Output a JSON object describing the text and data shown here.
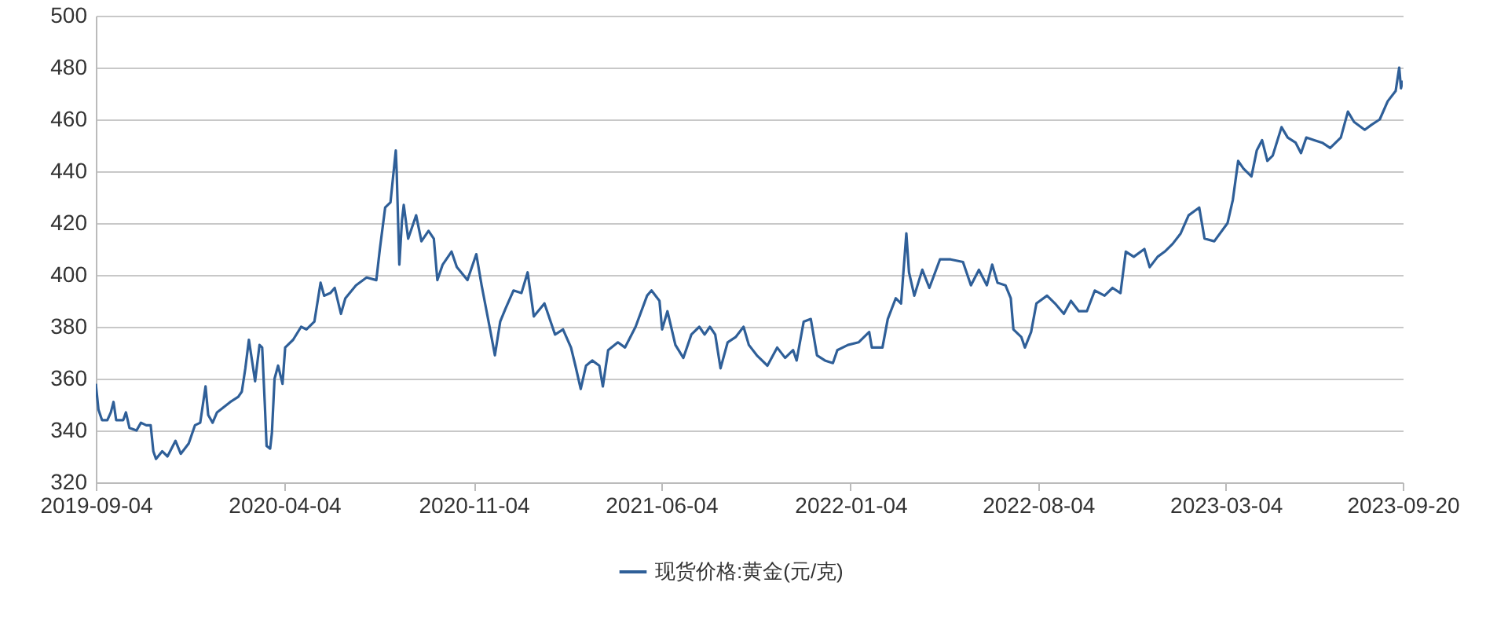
{
  "chart_data": {
    "type": "line",
    "grid": "y",
    "legend": "bottom",
    "xlim": [
      "2019-09-04",
      "2023-09-20"
    ],
    "xticks": [
      "2019-09-04",
      "2020-04-04",
      "2020-11-04",
      "2021-06-04",
      "2022-01-04",
      "2022-08-04",
      "2023-03-04",
      "2023-09-20"
    ],
    "ylim": [
      320,
      500
    ],
    "yticks": [
      320,
      340,
      360,
      380,
      400,
      420,
      440,
      460,
      480,
      500
    ],
    "x": [
      "2019-09-04",
      "2019-09-07",
      "2019-09-11",
      "2019-09-17",
      "2019-09-21",
      "2019-09-24",
      "2019-09-27",
      "2019-10-05",
      "2019-10-08",
      "2019-10-12",
      "2019-10-20",
      "2019-10-25",
      "2019-10-31",
      "2019-11-05",
      "2019-11-08",
      "2019-11-11",
      "2019-11-18",
      "2019-11-24",
      "2019-12-03",
      "2019-12-09",
      "2019-12-18",
      "2019-12-25",
      "2019-12-31",
      "2020-01-06",
      "2020-01-09",
      "2020-01-14",
      "2020-01-19",
      "2020-02-03",
      "2020-02-12",
      "2020-02-16",
      "2020-02-20",
      "2020-02-24",
      "2020-03-02",
      "2020-03-07",
      "2020-03-10",
      "2020-03-13",
      "2020-03-15",
      "2020-03-19",
      "2020-03-21",
      "2020-03-24",
      "2020-03-28",
      "2020-04-02",
      "2020-04-05",
      "2020-04-14",
      "2020-04-23",
      "2020-04-29",
      "2020-05-08",
      "2020-05-15",
      "2020-05-19",
      "2020-05-26",
      "2020-05-31",
      "2020-06-07",
      "2020-06-12",
      "2020-06-24",
      "2020-07-06",
      "2020-07-17",
      "2020-07-21",
      "2020-07-27",
      "2020-08-02",
      "2020-08-08",
      "2020-08-09",
      "2020-08-12",
      "2020-08-15",
      "2020-08-17",
      "2020-08-22",
      "2020-08-31",
      "2020-09-06",
      "2020-09-14",
      "2020-09-20",
      "2020-09-24",
      "2020-09-30",
      "2020-10-10",
      "2020-10-16",
      "2020-10-28",
      "2020-11-07",
      "2020-11-13",
      "2020-11-22",
      "2020-11-28",
      "2020-12-04",
      "2020-12-10",
      "2020-12-19",
      "2020-12-28",
      "2021-01-04",
      "2021-01-11",
      "2021-01-23",
      "2021-02-04",
      "2021-02-13",
      "2021-02-22",
      "2021-02-27",
      "2021-03-05",
      "2021-03-11",
      "2021-03-18",
      "2021-03-26",
      "2021-03-30",
      "2021-04-05",
      "2021-04-16",
      "2021-04-24",
      "2021-05-06",
      "2021-05-19",
      "2021-05-24",
      "2021-06-02",
      "2021-06-05",
      "2021-06-11",
      "2021-06-20",
      "2021-06-29",
      "2021-07-08",
      "2021-07-17",
      "2021-07-23",
      "2021-07-29",
      "2021-08-04",
      "2021-08-10",
      "2021-08-18",
      "2021-08-27",
      "2021-09-05",
      "2021-09-11",
      "2021-09-20",
      "2021-10-02",
      "2021-10-13",
      "2021-10-22",
      "2021-10-31",
      "2021-11-04",
      "2021-11-12",
      "2021-11-20",
      "2021-11-27",
      "2021-12-06",
      "2021-12-15",
      "2021-12-20",
      "2022-01-01",
      "2022-01-13",
      "2022-01-25",
      "2022-01-28",
      "2022-02-09",
      "2022-02-15",
      "2022-02-24",
      "2022-03-02",
      "2022-03-08",
      "2022-03-11",
      "2022-03-17",
      "2022-03-26",
      "2022-04-03",
      "2022-04-15",
      "2022-04-27",
      "2022-05-11",
      "2022-05-20",
      "2022-05-29",
      "2022-06-07",
      "2022-06-13",
      "2022-06-19",
      "2022-06-28",
      "2022-07-04",
      "2022-07-07",
      "2022-07-16",
      "2022-07-20",
      "2022-07-27",
      "2022-08-02",
      "2022-08-14",
      "2022-08-23",
      "2022-09-02",
      "2022-09-10",
      "2022-09-19",
      "2022-09-28",
      "2022-10-07",
      "2022-10-18",
      "2022-10-27",
      "2022-11-05",
      "2022-11-11",
      "2022-11-20",
      "2022-12-02",
      "2022-12-08",
      "2022-12-17",
      "2022-12-25",
      "2023-01-03",
      "2023-01-12",
      "2023-01-21",
      "2023-02-02",
      "2023-02-08",
      "2023-02-19",
      "2023-03-06",
      "2023-03-12",
      "2023-03-18",
      "2023-03-24",
      "2023-04-02",
      "2023-04-08",
      "2023-04-14",
      "2023-04-20",
      "2023-04-26",
      "2023-05-06",
      "2023-05-13",
      "2023-05-22",
      "2023-05-28",
      "2023-06-03",
      "2023-06-12",
      "2023-06-21",
      "2023-06-30",
      "2023-07-12",
      "2023-07-20",
      "2023-07-27",
      "2023-08-08",
      "2023-08-16",
      "2023-08-25",
      "2023-09-03",
      "2023-09-12",
      "2023-09-16",
      "2023-09-18",
      "2023-09-20"
    ],
    "series": [
      {
        "name": "现货价格:黄金(元/克)",
        "color": "#2f5f98",
        "values": [
          358,
          348,
          344,
          344,
          347,
          351,
          344,
          344,
          347,
          341,
          340,
          343,
          342,
          342,
          332,
          329,
          332,
          330,
          336,
          331,
          335,
          342,
          343,
          357,
          346,
          343,
          347,
          351,
          353,
          355,
          364,
          375,
          359,
          373,
          372,
          350,
          334,
          333,
          339,
          360,
          365,
          358,
          372,
          375,
          380,
          379,
          382,
          397,
          392,
          393,
          395,
          385,
          391,
          396,
          399,
          398,
          410,
          426,
          428,
          448,
          440,
          404,
          421,
          427,
          414,
          423,
          413,
          417,
          414,
          398,
          404,
          409,
          403,
          398,
          408,
          396,
          380,
          369,
          382,
          387,
          394,
          393,
          401,
          384,
          389,
          377,
          379,
          372,
          365,
          356,
          365,
          367,
          365,
          357,
          371,
          374,
          372,
          380,
          392,
          394,
          390,
          379,
          386,
          373,
          368,
          377,
          380,
          377,
          380,
          377,
          364,
          374,
          376,
          380,
          373,
          369,
          365,
          372,
          368,
          371,
          367,
          382,
          383,
          369,
          367,
          366,
          371,
          373,
          374,
          378,
          372,
          372,
          383,
          391,
          389,
          416,
          401,
          392,
          402,
          395,
          406,
          406,
          405,
          396,
          402,
          396,
          404,
          397,
          396,
          391,
          379,
          376,
          372,
          378,
          389,
          392,
          389,
          385,
          390,
          386,
          386,
          394,
          392,
          395,
          393,
          409,
          407,
          410,
          403,
          407,
          409,
          412,
          416,
          423,
          426,
          414,
          413,
          420,
          429,
          444,
          441,
          438,
          448,
          452,
          444,
          446,
          457,
          453,
          451,
          447,
          453,
          452,
          451,
          449,
          453,
          463,
          459,
          456,
          458,
          460,
          467,
          471,
          480,
          472,
          475
        ]
      }
    ]
  }
}
